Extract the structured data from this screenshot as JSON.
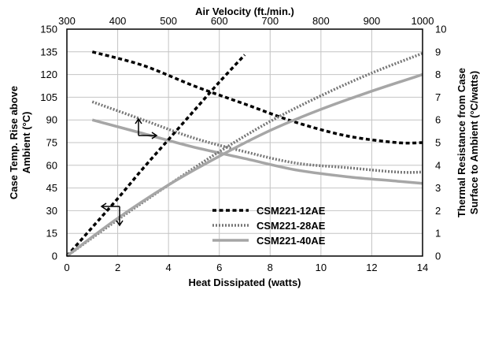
{
  "chart_data": {
    "type": "line",
    "top_axis": {
      "label": "Air Velocity (ft./min.)",
      "ticks": [
        300,
        400,
        500,
        600,
        700,
        800,
        900,
        1000
      ],
      "range": [
        300,
        1000
      ]
    },
    "bottom_axis": {
      "label": "Heat Dissipated (watts)",
      "ticks": [
        0,
        2,
        4,
        6,
        8,
        10,
        12,
        14
      ],
      "range": [
        0,
        14
      ]
    },
    "left_axis": {
      "label_line1": "Case Temp. Rise above",
      "label_line2": "Ambient (°C)",
      "ticks": [
        0,
        15,
        30,
        45,
        60,
        75,
        90,
        105,
        120,
        135,
        150
      ],
      "range": [
        0,
        150
      ]
    },
    "right_axis": {
      "label_line1": "Thermal Resistance from Case",
      "label_line2": "Surface to Ambient (°C/watts)",
      "ticks": [
        0,
        1,
        2,
        3,
        4,
        5,
        6,
        7,
        8,
        9,
        10
      ],
      "range": [
        0,
        10
      ]
    },
    "grid": true,
    "legend_position": "lower-middle",
    "temperature_rise_series": [
      {
        "name": "CSM221-12AE",
        "style": "dashed",
        "color": "#000000",
        "x_axis": "bottom",
        "y_axis": "left",
        "points": [
          [
            0,
            0
          ],
          [
            1,
            19
          ],
          [
            2,
            38
          ],
          [
            3,
            58
          ],
          [
            4,
            77
          ],
          [
            5,
            96
          ],
          [
            6,
            115
          ],
          [
            7,
            133
          ]
        ]
      },
      {
        "name": "CSM221-28AE",
        "style": "dotted",
        "color": "#777777",
        "x_axis": "bottom",
        "y_axis": "left",
        "points": [
          [
            0,
            0
          ],
          [
            2,
            24
          ],
          [
            4,
            47
          ],
          [
            6,
            69
          ],
          [
            8,
            89
          ],
          [
            10,
            106
          ],
          [
            12,
            121
          ],
          [
            14,
            134
          ]
        ]
      },
      {
        "name": "CSM221-40AE",
        "style": "solid",
        "color": "#a6a6a6",
        "x_axis": "bottom",
        "y_axis": "left",
        "points": [
          [
            0,
            0
          ],
          [
            2,
            25
          ],
          [
            4,
            47
          ],
          [
            6,
            66
          ],
          [
            8,
            83
          ],
          [
            10,
            97
          ],
          [
            12,
            109
          ],
          [
            14,
            120
          ]
        ]
      }
    ],
    "thermal_resistance_series": [
      {
        "name": "CSM221-12AE",
        "style": "dashed",
        "color": "#000000",
        "x_axis": "top",
        "y_axis": "right",
        "points": [
          [
            350,
            9.0
          ],
          [
            450,
            8.4
          ],
          [
            550,
            7.5
          ],
          [
            650,
            6.7
          ],
          [
            750,
            5.9
          ],
          [
            850,
            5.3
          ],
          [
            950,
            5.0
          ],
          [
            1000,
            5.0
          ]
        ]
      },
      {
        "name": "CSM221-28AE",
        "style": "dotted",
        "color": "#777777",
        "x_axis": "top",
        "y_axis": "right",
        "points": [
          [
            350,
            6.8
          ],
          [
            450,
            6.0
          ],
          [
            550,
            5.2
          ],
          [
            650,
            4.6
          ],
          [
            750,
            4.1
          ],
          [
            850,
            3.9
          ],
          [
            950,
            3.7
          ],
          [
            1000,
            3.7
          ]
        ]
      },
      {
        "name": "CSM221-40AE",
        "style": "solid",
        "color": "#a6a6a6",
        "x_axis": "top",
        "y_axis": "right",
        "points": [
          [
            350,
            6.0
          ],
          [
            450,
            5.4
          ],
          [
            550,
            4.8
          ],
          [
            650,
            4.3
          ],
          [
            750,
            3.8
          ],
          [
            850,
            3.5
          ],
          [
            950,
            3.3
          ],
          [
            1000,
            3.2
          ]
        ]
      }
    ]
  }
}
